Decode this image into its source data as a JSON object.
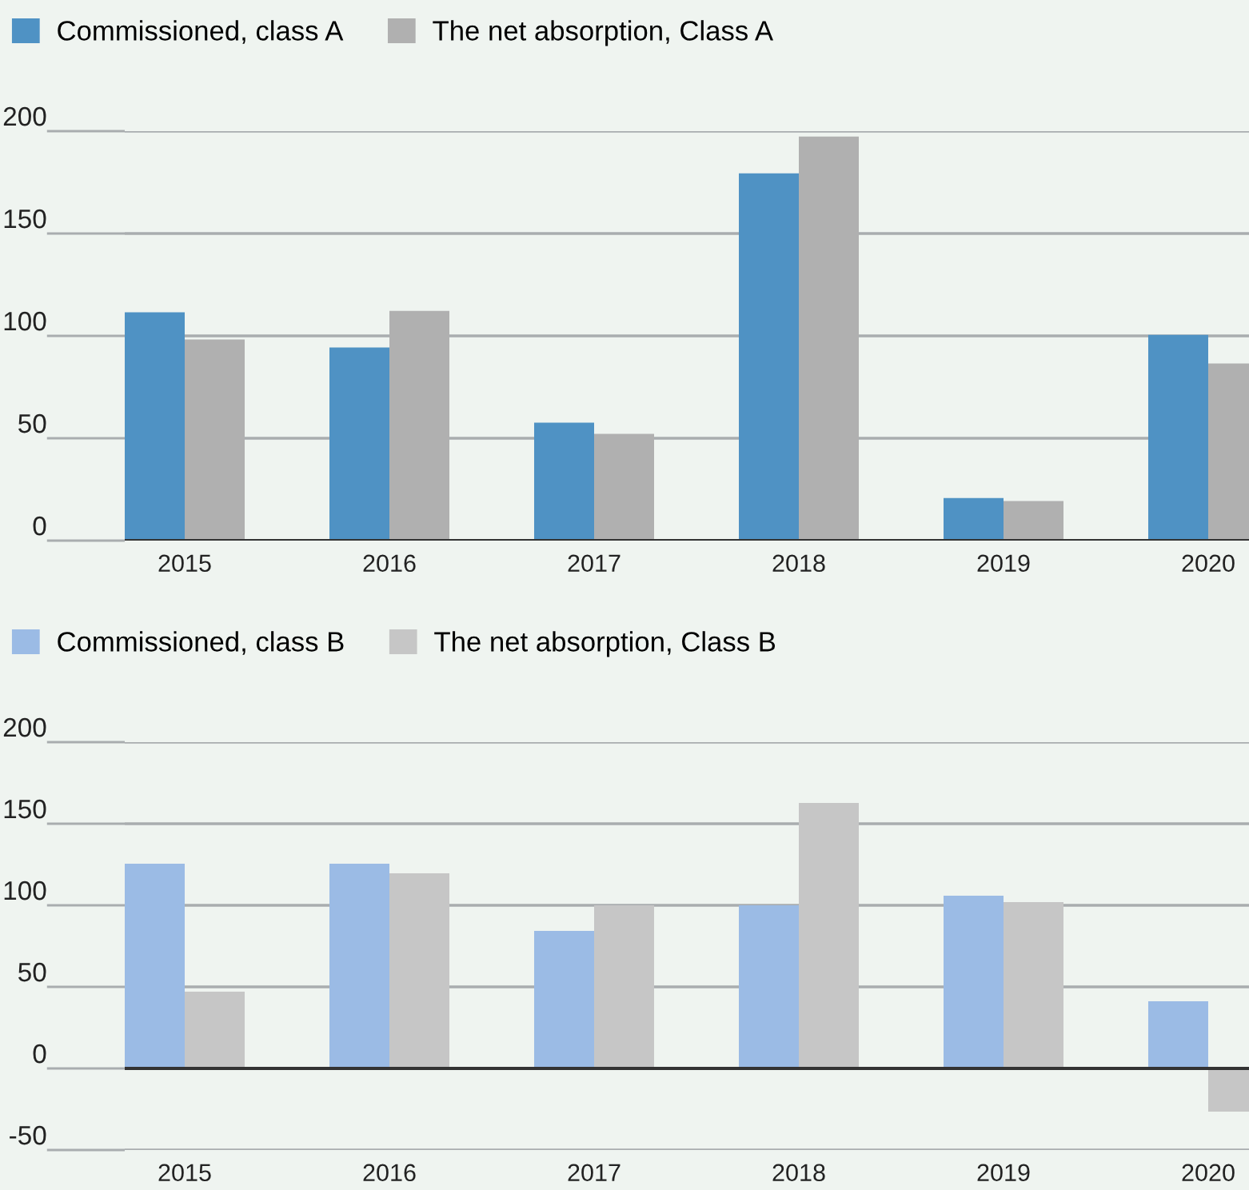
{
  "chart_data": [
    {
      "type": "bar",
      "categories": [
        "2015",
        "2016",
        "2017",
        "2018",
        "2019",
        "2020"
      ],
      "series": [
        {
          "name": "Commissioned, class A",
          "color": "#4f92c4",
          "values": [
            111.5,
            94.3,
            57.6,
            179.4,
            20.8,
            100.5
          ]
        },
        {
          "name": "The net absorption, Class A",
          "color": "#b0b0b0",
          "values": [
            98.2,
            112.2,
            52.1,
            197.4,
            19.3,
            86.5
          ]
        }
      ],
      "ylim": [
        0,
        200
      ],
      "yticks": [
        0,
        50,
        100,
        150,
        200
      ],
      "grid": "y",
      "legend": "top left"
    },
    {
      "type": "bar",
      "categories": [
        "2015",
        "2016",
        "2017",
        "2018",
        "2019",
        "2020"
      ],
      "series": [
        {
          "name": "Commissioned, class B",
          "color": "#9bbbe5",
          "values": [
            125.5,
            125.5,
            84.3,
            100,
            105.9,
            41.2
          ]
        },
        {
          "name": "The net absorption, Class B",
          "color": "#c6c6c6",
          "values": [
            47.1,
            119.6,
            100,
            162.7,
            102,
            -26.5
          ]
        }
      ],
      "ylim": [
        -50,
        200
      ],
      "yticks": [
        -50,
        0,
        50,
        100,
        150,
        200
      ],
      "grid": "y",
      "legend": "top left"
    }
  ]
}
